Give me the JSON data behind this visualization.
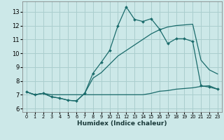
{
  "xlabel": "Humidex (Indice chaleur)",
  "bg_color": "#cce8e8",
  "grid_color": "#aacece",
  "line_color": "#1a6b6b",
  "xlim": [
    -0.5,
    23.5
  ],
  "ylim": [
    5.75,
    13.75
  ],
  "yticks": [
    6,
    7,
    8,
    9,
    10,
    11,
    12,
    13
  ],
  "xticks": [
    0,
    1,
    2,
    3,
    4,
    5,
    6,
    7,
    8,
    9,
    10,
    11,
    12,
    13,
    14,
    15,
    16,
    17,
    18,
    19,
    20,
    21,
    22,
    23
  ],
  "line1_x": [
    0,
    1,
    2,
    3,
    4,
    5,
    6,
    7,
    8,
    9,
    10,
    11,
    12,
    13,
    14,
    15,
    16,
    17,
    18,
    19,
    20,
    21,
    22,
    23
  ],
  "line1_y": [
    7.2,
    7.0,
    7.1,
    6.85,
    6.75,
    6.6,
    6.55,
    7.1,
    8.55,
    9.35,
    10.2,
    12.0,
    13.35,
    12.45,
    12.3,
    12.5,
    11.75,
    10.7,
    11.05,
    11.05,
    10.85,
    7.65,
    7.55,
    7.4
  ],
  "line2_x": [
    0,
    1,
    2,
    3,
    4,
    5,
    6,
    7,
    8,
    9,
    10,
    11,
    12,
    13,
    14,
    15,
    16,
    17,
    18,
    19,
    20,
    21,
    22,
    23
  ],
  "line2_y": [
    7.2,
    7.0,
    7.1,
    6.85,
    6.75,
    6.6,
    6.55,
    7.1,
    8.2,
    8.6,
    9.2,
    9.8,
    10.2,
    10.6,
    11.0,
    11.4,
    11.7,
    11.9,
    12.0,
    12.05,
    12.1,
    9.5,
    8.8,
    8.5
  ],
  "line3_x": [
    0,
    1,
    2,
    3,
    4,
    5,
    6,
    7,
    8,
    9,
    10,
    11,
    12,
    13,
    14,
    15,
    16,
    17,
    18,
    19,
    20,
    21,
    22,
    23
  ],
  "line3_y": [
    7.2,
    7.0,
    7.1,
    7.0,
    7.0,
    7.0,
    7.0,
    7.0,
    7.0,
    7.0,
    7.0,
    7.0,
    7.0,
    7.0,
    7.0,
    7.1,
    7.25,
    7.3,
    7.4,
    7.45,
    7.5,
    7.6,
    7.65,
    7.4
  ],
  "marker_x": [
    0,
    1,
    2,
    3,
    4,
    5,
    6,
    7,
    8,
    9,
    10,
    11,
    12,
    13,
    14,
    15,
    16,
    17,
    18,
    19,
    20,
    21,
    22,
    23
  ],
  "marker_y": [
    7.2,
    7.0,
    7.1,
    6.85,
    6.75,
    6.6,
    6.55,
    7.1,
    8.55,
    9.35,
    10.2,
    12.0,
    13.35,
    12.45,
    12.3,
    12.5,
    11.75,
    10.7,
    11.05,
    11.05,
    10.85,
    7.65,
    7.55,
    7.4
  ]
}
